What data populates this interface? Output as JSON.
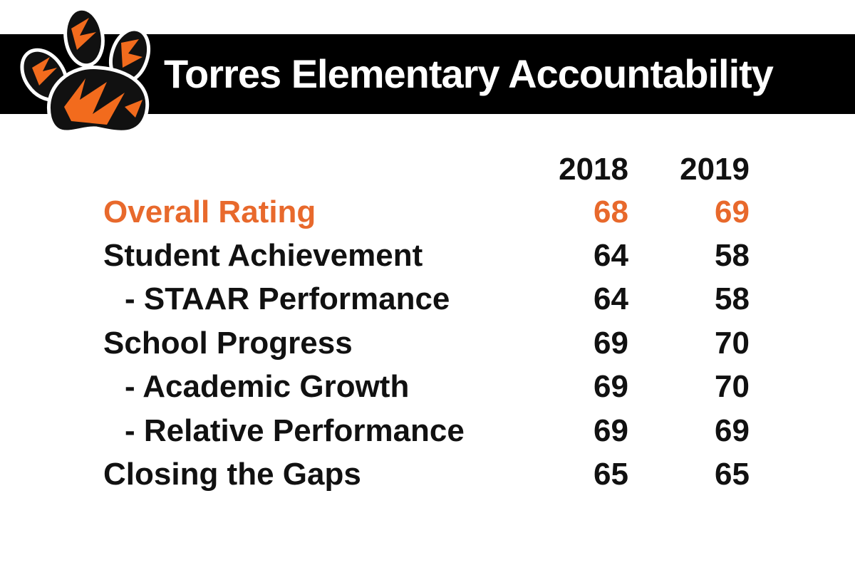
{
  "header": {
    "title": "Torres Elementary Accountability"
  },
  "table": {
    "columns": [
      "2018",
      "2019"
    ],
    "rows": [
      {
        "label": "Overall Rating",
        "values": [
          68,
          69
        ],
        "color": "#e8692c"
      },
      {
        "label": "Student Achievement",
        "values": [
          64,
          58
        ]
      },
      {
        "label": "- STAAR Performance",
        "values": [
          64,
          58
        ]
      },
      {
        "label": "School Progress",
        "values": [
          69,
          70
        ]
      },
      {
        "label": "- Academic Growth",
        "values": [
          69,
          70
        ]
      },
      {
        "label": "- Relative Performance",
        "values": [
          69,
          69
        ]
      },
      {
        "label": "Closing the Gaps",
        "values": [
          65,
          65
        ]
      }
    ]
  }
}
